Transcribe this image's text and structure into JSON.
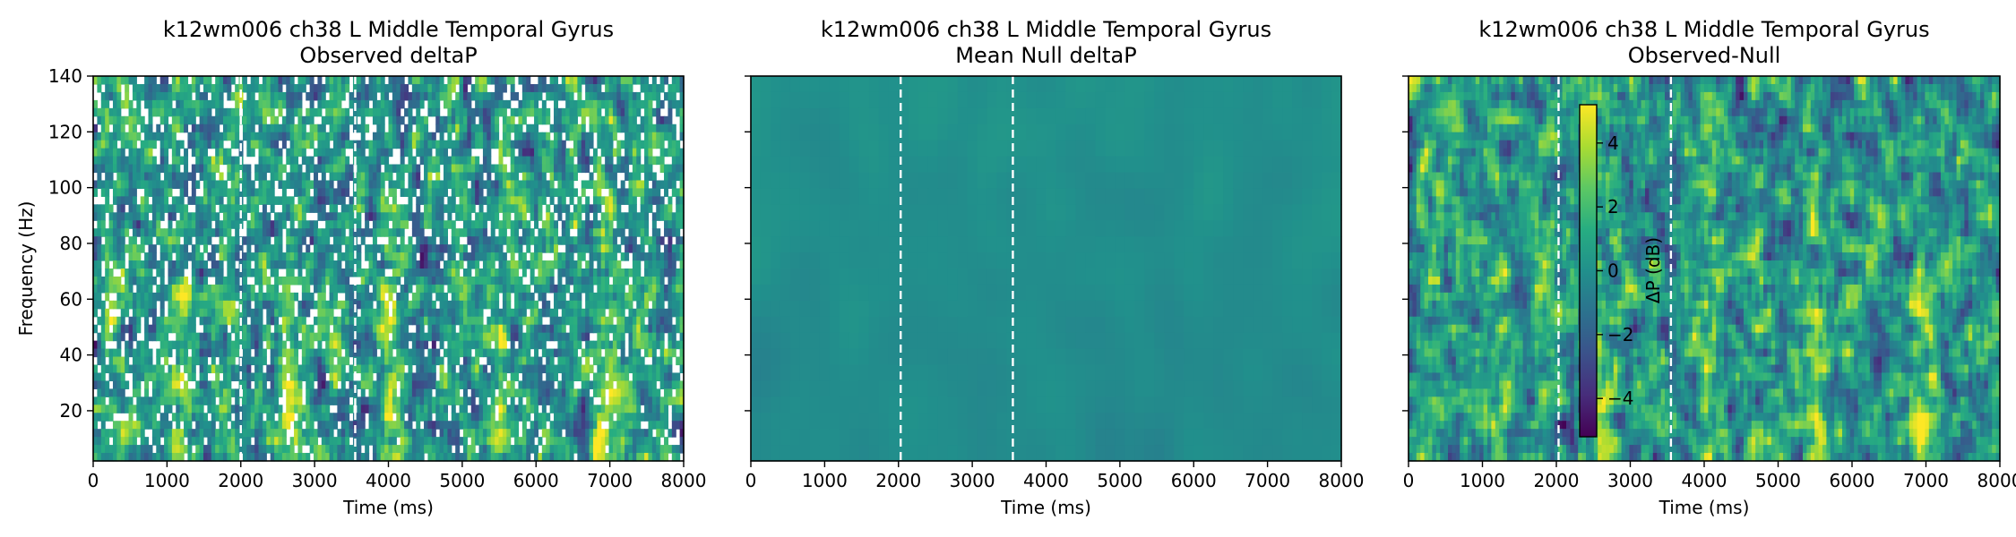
{
  "chart_data": [
    {
      "type": "heatmap",
      "title": "k12wm006 ch38 L Middle Temporal Gyrus",
      "subtitle": "Observed deltaP",
      "xlabel": "Time (ms)",
      "ylabel": "Frequency (Hz)",
      "xlim": [
        0,
        8000
      ],
      "ylim": [
        2,
        140
      ],
      "xticks": [
        0,
        1000,
        2000,
        3000,
        4000,
        5000,
        6000,
        7000,
        8000
      ],
      "yticks": [
        20,
        40,
        60,
        80,
        100,
        120,
        140
      ],
      "event_lines_ms": [
        2000,
        3550
      ],
      "colormap": "viridis",
      "has_masked_gaps": true
    },
    {
      "type": "heatmap",
      "title": "k12wm006 ch38 L Middle Temporal Gyrus",
      "subtitle": "Mean Null deltaP",
      "xlabel": "Time (ms)",
      "xlim": [
        0,
        8000
      ],
      "ylim": [
        2,
        140
      ],
      "xticks": [
        0,
        1000,
        2000,
        3000,
        4000,
        5000,
        6000,
        7000,
        8000
      ],
      "event_lines_ms": [
        2030,
        3550
      ],
      "colormap": "viridis",
      "value_level": "near zero"
    },
    {
      "type": "heatmap",
      "title": "k12wm006 ch38 L Middle Temporal Gyrus",
      "subtitle": "Observed-Null",
      "xlabel": "Time (ms)",
      "xlim": [
        0,
        8000
      ],
      "ylim": [
        2,
        140
      ],
      "xticks": [
        0,
        1000,
        2000,
        3000,
        4000,
        5000,
        6000,
        7000,
        8000
      ],
      "event_lines_ms": [
        2030,
        3550
      ],
      "colormap": "viridis",
      "colorbar": {
        "label": "ΔP (dB)",
        "range": [
          -5.2,
          5.2
        ],
        "ticks": [
          "4",
          "2",
          "0",
          "−2",
          "−4"
        ],
        "tick_values": [
          4,
          2,
          0,
          -2,
          -4
        ],
        "placement": "inside plot, upper-middle"
      }
    }
  ]
}
